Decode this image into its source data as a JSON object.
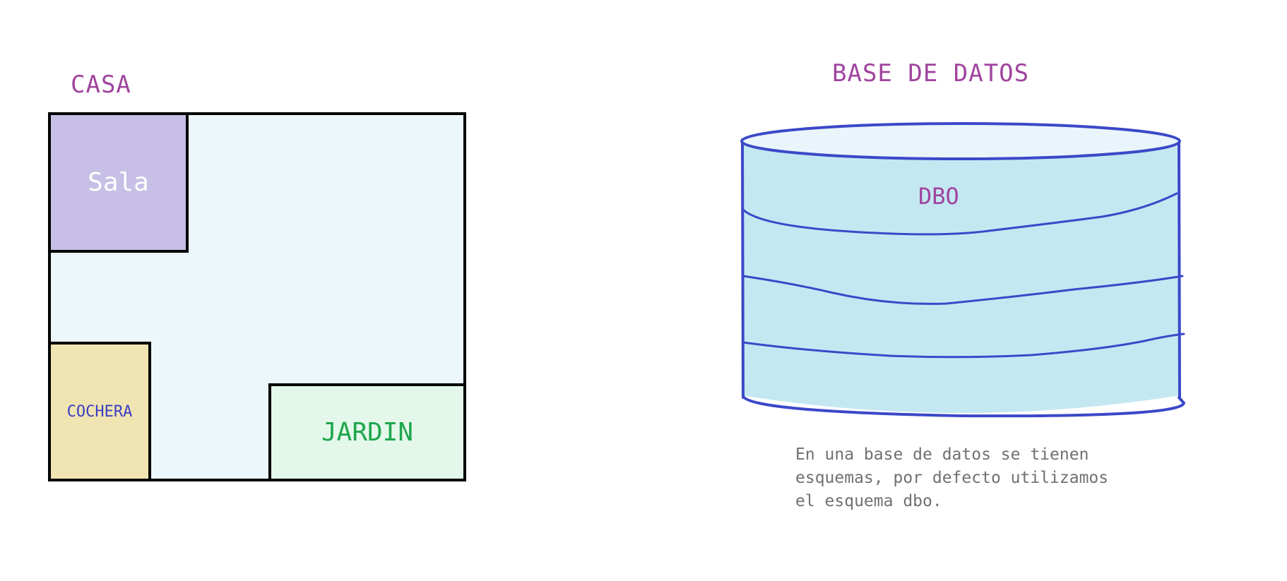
{
  "house": {
    "title": "CASA",
    "rooms": {
      "sala": "Sala",
      "cochera": "COCHERA",
      "jardin": "JARDIN"
    }
  },
  "database": {
    "title": "BASE DE DATOS",
    "schema_label": "DBO",
    "caption": "En una base de datos se tienen\nesquemas, por defecto utilizamos\nel esquema dbo."
  },
  "colors": {
    "title": "#a0449e",
    "house_bg": "#ecf7fc",
    "sala": "#c7bfe5",
    "cochera": "#f0e4b2",
    "jardin": "#e3f8ea",
    "cylinder_fill": "#c4e8f2",
    "cylinder_stroke": "#3b48c8"
  }
}
